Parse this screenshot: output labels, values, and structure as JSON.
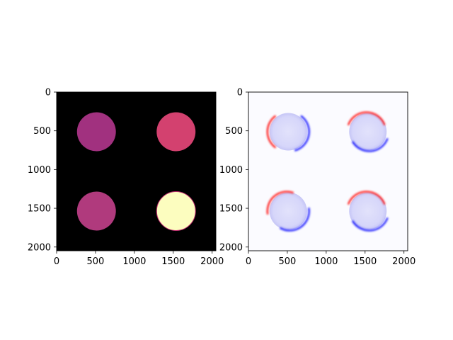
{
  "chart_data": [
    {
      "type": "heatmap",
      "panel": "left",
      "colormap": "magma",
      "background_color": "#000000",
      "xlim": [
        0,
        2048
      ],
      "ylim": [
        2048,
        0
      ],
      "xticks": [
        "0",
        "500",
        "1000",
        "1500",
        "2000"
      ],
      "yticks": [
        "0",
        "500",
        "1000",
        "1500",
        "2000"
      ],
      "spots": [
        {
          "cx": 512,
          "cy": 512,
          "r": 250,
          "color": "#a1317f"
        },
        {
          "cx": 1536,
          "cy": 512,
          "r": 250,
          "color": "#d3416f"
        },
        {
          "cx": 512,
          "cy": 1536,
          "r": 250,
          "color": "#b03a7d"
        },
        {
          "cx": 1536,
          "cy": 1536,
          "r": 250,
          "color": "#fcfdbf"
        }
      ]
    },
    {
      "type": "heatmap",
      "panel": "right",
      "colormap": "bwr",
      "background_color": "#fbfbff",
      "xlim": [
        0,
        2048
      ],
      "ylim": [
        2048,
        0
      ],
      "xticks": [
        "0",
        "500",
        "1000",
        "1500",
        "2000"
      ],
      "yticks": [
        "0",
        "500",
        "1000",
        "1500",
        "2000"
      ],
      "spots": [
        {
          "cx": 512,
          "cy": 512,
          "r": 250,
          "red_side": "left"
        },
        {
          "cx": 1536,
          "cy": 512,
          "r": 250,
          "red_side": "top"
        },
        {
          "cx": 512,
          "cy": 1536,
          "r": 250,
          "red_side": "top-left"
        },
        {
          "cx": 1536,
          "cy": 1536,
          "r": 250,
          "red_side": "top"
        }
      ]
    }
  ]
}
